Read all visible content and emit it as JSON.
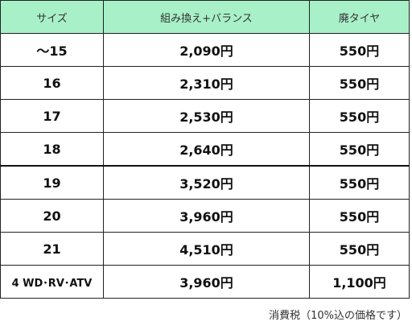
{
  "header": {
    "size": "サイズ",
    "combo": "組み換え+バランス",
    "disposal": "廃タイヤ"
  },
  "rows": [
    {
      "size": "〜15",
      "combo": "2,090円",
      "disposal": "550円"
    },
    {
      "size": "16",
      "combo": "2,310円",
      "disposal": "550円"
    },
    {
      "size": "17",
      "combo": "2,530円",
      "disposal": "550円"
    },
    {
      "size": "18",
      "combo": "2,640円",
      "disposal": "550円"
    },
    {
      "size": "19",
      "combo": "3,520円",
      "disposal": "550円"
    },
    {
      "size": "20",
      "combo": "3,960円",
      "disposal": "550円"
    },
    {
      "size": "21",
      "combo": "4,510円",
      "disposal": "550円"
    },
    {
      "size": "4 WD･RV･ATV",
      "combo": "3,960円",
      "disposal": "1,100円"
    }
  ],
  "note": "消費税（10%込の価格です）",
  "colors": {
    "header_bg": "#a8f0c8",
    "border": "#222222"
  }
}
